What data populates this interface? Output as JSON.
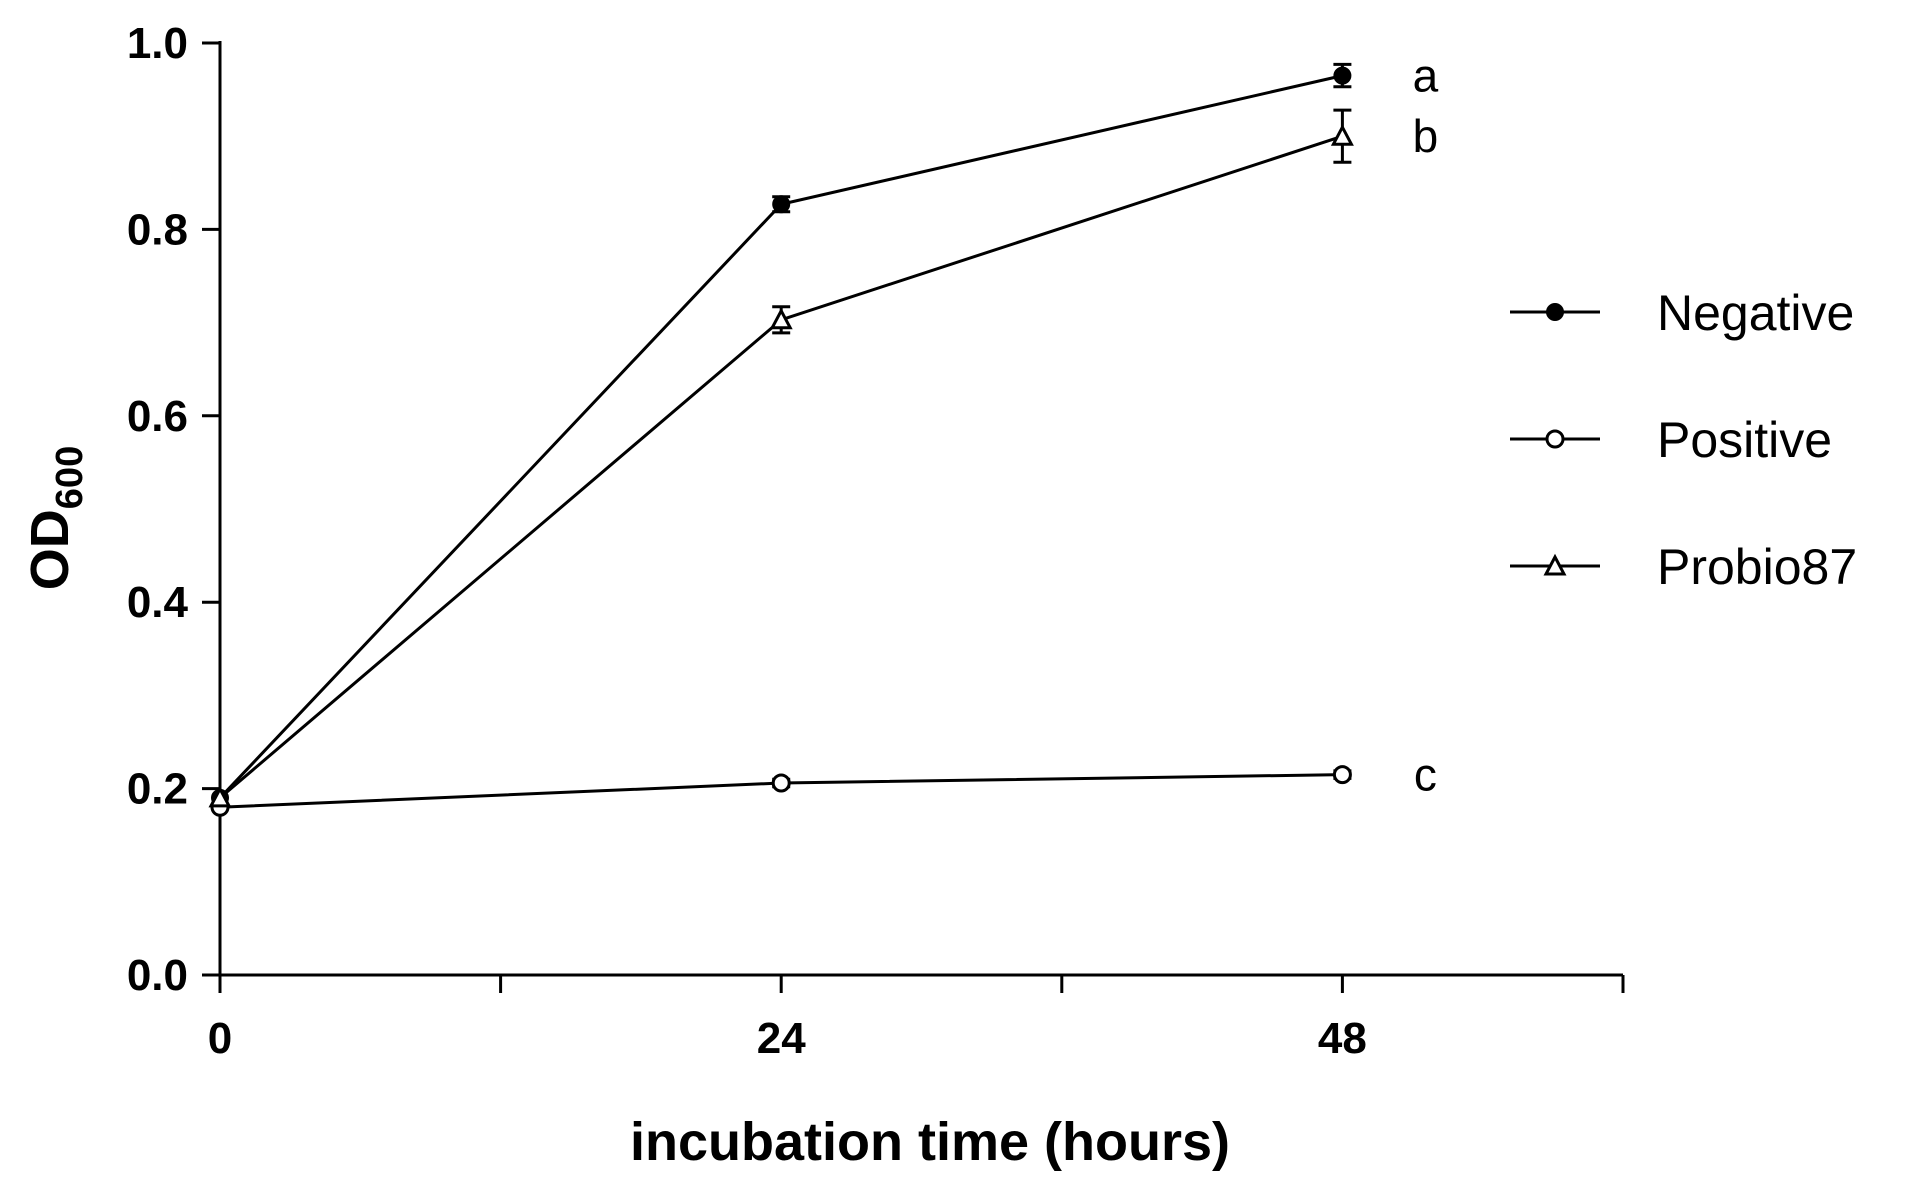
{
  "chart_data": {
    "type": "line",
    "title": "",
    "xlabel": "incubation time (hours)",
    "ylabel_main": "OD",
    "ylabel_sub": "600",
    "x": [
      0,
      24,
      48
    ],
    "x_tick_labels": [
      "0",
      "24",
      "48"
    ],
    "xlim": [
      0,
      60
    ],
    "ylim": [
      0,
      1.0
    ],
    "y_ticks": [
      0.0,
      0.2,
      0.4,
      0.6,
      0.8,
      1.0
    ],
    "y_tick_labels": [
      "0.0",
      "0.2",
      "0.4",
      "0.6",
      "0.8",
      "1.0"
    ],
    "grid": false,
    "legend_position": "right",
    "series": [
      {
        "name": "Negative",
        "marker": "filled-circle",
        "values": [
          0.19,
          0.827,
          0.965
        ],
        "errors": [
          0.0,
          0.008,
          0.012
        ],
        "significance": "a"
      },
      {
        "name": "Positive",
        "marker": "open-circle",
        "values": [
          0.18,
          0.206,
          0.215
        ],
        "errors": [
          0.0,
          0.004,
          0.004
        ],
        "significance": "c"
      },
      {
        "name": "Probio87",
        "marker": "open-triangle",
        "values": [
          0.19,
          0.703,
          0.9
        ],
        "errors": [
          0.0,
          0.014,
          0.028
        ],
        "significance": "b"
      }
    ]
  },
  "colors": {
    "line": "#000000",
    "background": "#ffffff"
  }
}
